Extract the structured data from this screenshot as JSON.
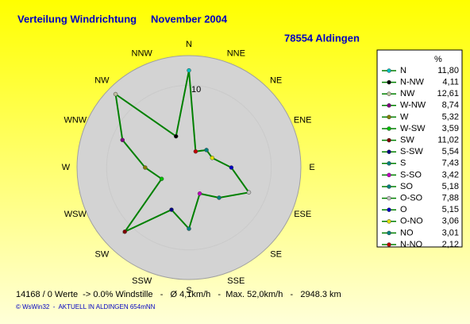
{
  "chart_data": {
    "type": "radar",
    "title": "Verteilung Windrichtung",
    "period": "November 2004",
    "location": "78554 Aldingen",
    "direction_labels": [
      "N",
      "NNE",
      "NE",
      "ENE",
      "E",
      "ESE",
      "SE",
      "SSE",
      "S",
      "SSW",
      "SW",
      "WSW",
      "W",
      "WNW",
      "NW",
      "NNW"
    ],
    "legend_header": "%",
    "categories": [
      "N",
      "N-NW",
      "NW",
      "W-NW",
      "W",
      "W-SW",
      "SW",
      "S-SW",
      "S",
      "S-SO",
      "SO",
      "O-SO",
      "O",
      "O-NO",
      "NO",
      "N-NO"
    ],
    "series": [
      {
        "color": "#008000",
        "values": [
          11.8,
          4.11,
          12.61,
          8.74,
          5.32,
          3.59,
          11.02,
          5.54,
          7.43,
          3.42,
          5.18,
          7.88,
          5.15,
          3.06,
          3.01,
          2.12
        ],
        "value_labels": [
          "11,80",
          "4,11",
          "12,61",
          "8,74",
          "5,32",
          "3,59",
          "11,02",
          "5,54",
          "7,43",
          "3,42",
          "5,18",
          "7,88",
          "5,15",
          "3,06",
          "3,01",
          "2,12"
        ],
        "marker_colors": [
          "#00c0c0",
          "#000000",
          "#c0c0a0",
          "#800080",
          "#808000",
          "#00c000",
          "#800000",
          "#000080",
          "#008080",
          "#c000c0",
          "#008080",
          "#c0c0c0",
          "#0000c0",
          "#e0e000",
          "#008080",
          "#c00000"
        ]
      }
    ],
    "rlim": [
      0,
      13.6
    ],
    "rticks": [
      10
    ],
    "footer": "14168 / 0 Werte  -> 0.0% Windstille   -   Ø 4,1km/h   -  Max. 52,0km/h   -   2948.3 km",
    "credit": "© WsWin32  -  AKTUELL IN ALDINGEN 654mNN"
  }
}
